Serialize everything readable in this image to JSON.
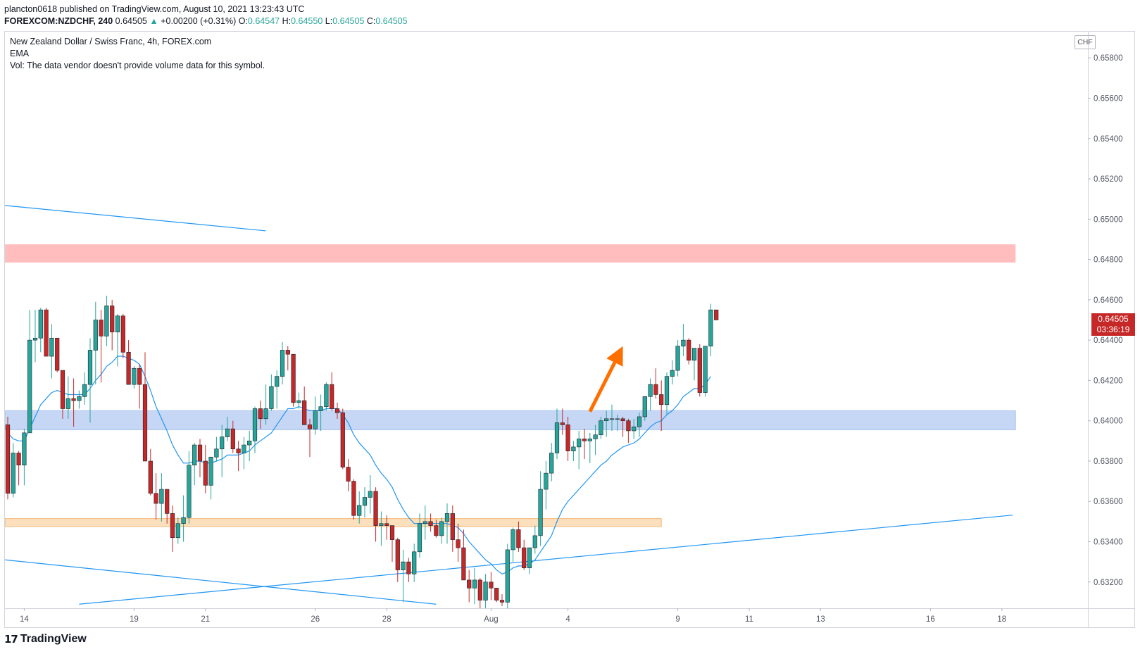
{
  "header": {
    "publisher_line": "plancton0618 published on TradingView.com, August 10, 2021 13:23:43 UTC",
    "symbol": "FOREXCOM:NZDCHF, 240",
    "last": "0.64505",
    "change": "+0.00200 (+0.31%)",
    "o_label": "O:",
    "o_value": "0.64547",
    "h_label": "H:",
    "h_value": "0.64550",
    "l_label": "L:",
    "l_value": "0.64505",
    "c_label": "C:",
    "c_value": "0.64505"
  },
  "legend": {
    "title": "New Zealand Dollar / Swiss Franc, 4h, FOREX.com",
    "ema": "EMA",
    "vol": "Vol: The data vendor doesn't provide volume data for this symbol."
  },
  "axis": {
    "currency": "CHF",
    "last_price": "0.64505",
    "countdown": "03:36:19"
  },
  "footer": {
    "brand": "TradingView"
  },
  "colors": {
    "up": "#26a69a",
    "down": "#c62828",
    "ema": "#2196f3",
    "resistance_zone": "#ffbdbd",
    "support_zone": "#c5d7f5",
    "demand_zone": "#fbd9b0",
    "arrow": "#ff6f00"
  },
  "chart_data": {
    "type": "candlestick",
    "ylim": [
      0.6307,
      0.6593
    ],
    "y_ticks": [
      "0.65800",
      "0.65600",
      "0.65400",
      "0.65200",
      "0.65000",
      "0.64800",
      "0.64600",
      "0.64400",
      "0.64200",
      "0.64000",
      "0.63800",
      "0.63600",
      "0.63400",
      "0.63200"
    ],
    "x_ticks": [
      {
        "label": "14",
        "bar": 3
      },
      {
        "label": "19",
        "bar": 23
      },
      {
        "label": "21",
        "bar": 36
      },
      {
        "label": "26",
        "bar": 56
      },
      {
        "label": "28",
        "bar": 69
      },
      {
        "label": "Aug",
        "bar": 88
      },
      {
        "label": "4",
        "bar": 102
      },
      {
        "label": "9",
        "bar": 122
      },
      {
        "label": "11",
        "bar": 135
      },
      {
        "label": "13",
        "bar": 148
      },
      {
        "label": "16",
        "bar": 168
      },
      {
        "label": "18",
        "bar": 181
      }
    ],
    "candles": [
      [
        0.6398,
        0.6402,
        0.6361,
        0.6364
      ],
      [
        0.6364,
        0.6389,
        0.6362,
        0.6384
      ],
      [
        0.6384,
        0.6385,
        0.6368,
        0.6378
      ],
      [
        0.6378,
        0.6396,
        0.6368,
        0.6394
      ],
      [
        0.6394,
        0.6455,
        0.6394,
        0.644
      ],
      [
        0.644,
        0.6455,
        0.6429,
        0.6441
      ],
      [
        0.6441,
        0.6456,
        0.6434,
        0.6455
      ],
      [
        0.6455,
        0.6456,
        0.6432,
        0.6432
      ],
      [
        0.6432,
        0.6448,
        0.6421,
        0.6441
      ],
      [
        0.6441,
        0.6441,
        0.6424,
        0.6425
      ],
      [
        0.6425,
        0.6425,
        0.6401,
        0.6406
      ],
      [
        0.6406,
        0.6422,
        0.6401,
        0.6411
      ],
      [
        0.6411,
        0.6421,
        0.6397,
        0.641
      ],
      [
        0.641,
        0.6415,
        0.6406,
        0.6412
      ],
      [
        0.6412,
        0.6424,
        0.6408,
        0.6418
      ],
      [
        0.6418,
        0.6441,
        0.6399,
        0.6435
      ],
      [
        0.6435,
        0.6459,
        0.6418,
        0.645
      ],
      [
        0.645,
        0.6455,
        0.6419,
        0.6442
      ],
      [
        0.6442,
        0.6462,
        0.6437,
        0.6457
      ],
      [
        0.6457,
        0.646,
        0.6435,
        0.6444
      ],
      [
        0.6444,
        0.6453,
        0.6427,
        0.6452
      ],
      [
        0.6452,
        0.6453,
        0.6431,
        0.6434
      ],
      [
        0.6434,
        0.644,
        0.6418,
        0.6418
      ],
      [
        0.6418,
        0.6427,
        0.6416,
        0.6426
      ],
      [
        0.6426,
        0.6428,
        0.6406,
        0.6418
      ],
      [
        0.6418,
        0.6434,
        0.638,
        0.638
      ],
      [
        0.638,
        0.6386,
        0.6363,
        0.6364
      ],
      [
        0.6364,
        0.6374,
        0.6351,
        0.6359
      ],
      [
        0.6359,
        0.6374,
        0.635,
        0.6366
      ],
      [
        0.6366,
        0.6366,
        0.6349,
        0.6354
      ],
      [
        0.6354,
        0.6358,
        0.6335,
        0.6342
      ],
      [
        0.6342,
        0.6352,
        0.6339,
        0.6349
      ],
      [
        0.6349,
        0.6363,
        0.634,
        0.6352
      ],
      [
        0.6352,
        0.6385,
        0.6349,
        0.6378
      ],
      [
        0.6378,
        0.6389,
        0.6368,
        0.6388
      ],
      [
        0.6388,
        0.6391,
        0.6372,
        0.638
      ],
      [
        0.638,
        0.6388,
        0.6364,
        0.6368
      ],
      [
        0.6368,
        0.6382,
        0.6361,
        0.6382
      ],
      [
        0.6382,
        0.6392,
        0.638,
        0.6386
      ],
      [
        0.6386,
        0.6398,
        0.6372,
        0.6392
      ],
      [
        0.6392,
        0.6402,
        0.639,
        0.6396
      ],
      [
        0.6396,
        0.64,
        0.6384,
        0.6386
      ],
      [
        0.6386,
        0.639,
        0.6375,
        0.6384
      ],
      [
        0.6384,
        0.6392,
        0.6376,
        0.6388
      ],
      [
        0.6388,
        0.6395,
        0.638,
        0.639
      ],
      [
        0.639,
        0.6407,
        0.6384,
        0.6406
      ],
      [
        0.6406,
        0.641,
        0.6396,
        0.6401
      ],
      [
        0.6401,
        0.6418,
        0.6398,
        0.6406
      ],
      [
        0.6406,
        0.6423,
        0.6405,
        0.6417
      ],
      [
        0.6417,
        0.6425,
        0.6406,
        0.6422
      ],
      [
        0.6422,
        0.6439,
        0.6418,
        0.6435
      ],
      [
        0.6435,
        0.6437,
        0.6425,
        0.6433
      ],
      [
        0.6433,
        0.6431,
        0.6407,
        0.6409
      ],
      [
        0.6409,
        0.6414,
        0.6406,
        0.641
      ],
      [
        0.641,
        0.6417,
        0.6399,
        0.6398
      ],
      [
        0.6398,
        0.6401,
        0.6382,
        0.6396
      ],
      [
        0.6396,
        0.6412,
        0.6393,
        0.6405
      ],
      [
        0.6405,
        0.6413,
        0.6395,
        0.6407
      ],
      [
        0.6407,
        0.6419,
        0.6405,
        0.6418
      ],
      [
        0.6418,
        0.6424,
        0.6405,
        0.6406
      ],
      [
        0.6406,
        0.6409,
        0.6401,
        0.6404
      ],
      [
        0.6404,
        0.6406,
        0.6376,
        0.6377
      ],
      [
        0.6377,
        0.6381,
        0.6365,
        0.637
      ],
      [
        0.637,
        0.6371,
        0.6351,
        0.6353
      ],
      [
        0.6353,
        0.6365,
        0.6349,
        0.6358
      ],
      [
        0.6358,
        0.6367,
        0.6352,
        0.6362
      ],
      [
        0.6362,
        0.6373,
        0.6354,
        0.6365
      ],
      [
        0.6365,
        0.6367,
        0.634,
        0.6348
      ],
      [
        0.6348,
        0.6355,
        0.6338,
        0.6349
      ],
      [
        0.6349,
        0.6353,
        0.6341,
        0.6348
      ],
      [
        0.6348,
        0.6348,
        0.633,
        0.6341
      ],
      [
        0.6341,
        0.6342,
        0.632,
        0.6326
      ],
      [
        0.6326,
        0.6336,
        0.631,
        0.633
      ],
      [
        0.633,
        0.6332,
        0.632,
        0.6324
      ],
      [
        0.6324,
        0.6339,
        0.632,
        0.6335
      ],
      [
        0.6335,
        0.6354,
        0.6332,
        0.6349
      ],
      [
        0.6349,
        0.6358,
        0.6341,
        0.635
      ],
      [
        0.635,
        0.6354,
        0.6345,
        0.6348
      ],
      [
        0.6348,
        0.6351,
        0.6342,
        0.6343
      ],
      [
        0.6343,
        0.6352,
        0.6339,
        0.635
      ],
      [
        0.635,
        0.6359,
        0.6339,
        0.6354
      ],
      [
        0.6354,
        0.6358,
        0.6335,
        0.6341
      ],
      [
        0.6341,
        0.6349,
        0.633,
        0.6337
      ],
      [
        0.6337,
        0.6346,
        0.6321,
        0.6321
      ],
      [
        0.6321,
        0.6326,
        0.631,
        0.6317
      ],
      [
        0.6317,
        0.6327,
        0.6309,
        0.6321
      ],
      [
        0.6321,
        0.6322,
        0.6306,
        0.6311
      ],
      [
        0.6311,
        0.6324,
        0.6307,
        0.632
      ],
      [
        0.632,
        0.6325,
        0.6311,
        0.6317
      ],
      [
        0.6317,
        0.6317,
        0.631,
        0.6311
      ],
      [
        0.6311,
        0.6314,
        0.6308,
        0.631
      ],
      [
        0.631,
        0.6339,
        0.6306,
        0.6336
      ],
      [
        0.6336,
        0.6347,
        0.633,
        0.6346
      ],
      [
        0.6346,
        0.635,
        0.6335,
        0.6337
      ],
      [
        0.6337,
        0.6341,
        0.6326,
        0.6327
      ],
      [
        0.6327,
        0.6337,
        0.6324,
        0.6337
      ],
      [
        0.6337,
        0.6348,
        0.6334,
        0.6343
      ],
      [
        0.6343,
        0.6375,
        0.6338,
        0.6366
      ],
      [
        0.6366,
        0.638,
        0.6356,
        0.6374
      ],
      [
        0.6374,
        0.6389,
        0.637,
        0.6384
      ],
      [
        0.6384,
        0.6406,
        0.6381,
        0.6399
      ],
      [
        0.6399,
        0.6406,
        0.6393,
        0.6398
      ],
      [
        0.6398,
        0.6402,
        0.638,
        0.6385
      ],
      [
        0.6385,
        0.639,
        0.638,
        0.6387
      ],
      [
        0.6387,
        0.6395,
        0.6376,
        0.6391
      ],
      [
        0.6391,
        0.6396,
        0.6381,
        0.639
      ],
      [
        0.639,
        0.6394,
        0.6379,
        0.6391
      ],
      [
        0.6391,
        0.6398,
        0.6383,
        0.6393
      ],
      [
        0.6393,
        0.6402,
        0.6391,
        0.64
      ],
      [
        0.64,
        0.6405,
        0.6392,
        0.6401
      ],
      [
        0.6401,
        0.6408,
        0.6395,
        0.6401
      ],
      [
        0.6401,
        0.6403,
        0.6395,
        0.6401
      ],
      [
        0.6401,
        0.6402,
        0.6392,
        0.64
      ],
      [
        0.64,
        0.6401,
        0.6389,
        0.6395
      ],
      [
        0.6395,
        0.6401,
        0.6391,
        0.6397
      ],
      [
        0.6397,
        0.6404,
        0.6392,
        0.6402
      ],
      [
        0.6402,
        0.6412,
        0.64,
        0.6412
      ],
      [
        0.6412,
        0.6421,
        0.6405,
        0.6418
      ],
      [
        0.6418,
        0.6426,
        0.6411,
        0.6413
      ],
      [
        0.6413,
        0.642,
        0.6395,
        0.6408
      ],
      [
        0.6408,
        0.6424,
        0.6403,
        0.6422
      ],
      [
        0.6422,
        0.643,
        0.6418,
        0.6425
      ],
      [
        0.6425,
        0.644,
        0.6422,
        0.6437
      ],
      [
        0.6437,
        0.6448,
        0.6432,
        0.644
      ],
      [
        0.644,
        0.6441,
        0.6428,
        0.643
      ],
      [
        0.643,
        0.6434,
        0.642,
        0.6436
      ],
      [
        0.6436,
        0.6438,
        0.6412,
        0.6414
      ],
      [
        0.6414,
        0.6437,
        0.6412,
        0.6437
      ],
      [
        0.6437,
        0.6458,
        0.6432,
        0.6455
      ],
      [
        0.6455,
        0.6455,
        0.645,
        0.645
      ]
    ],
    "ema": [
      0.6394,
      0.6391,
      0.639,
      0.639,
      0.6396,
      0.6402,
      0.6408,
      0.6411,
      0.6414,
      0.6415,
      0.6414,
      0.6413,
      0.6413,
      0.6413,
      0.6413,
      0.6416,
      0.642,
      0.6423,
      0.6427,
      0.6429,
      0.6432,
      0.6432,
      0.6431,
      0.643,
      0.6428,
      0.6422,
      0.6415,
      0.6407,
      0.6401,
      0.6395,
      0.6388,
      0.6383,
      0.6379,
      0.6379,
      0.638,
      0.638,
      0.6379,
      0.6379,
      0.638,
      0.6381,
      0.6383,
      0.6383,
      0.6383,
      0.6384,
      0.6385,
      0.6388,
      0.639,
      0.6392,
      0.6394,
      0.6398,
      0.6402,
      0.6406,
      0.6406,
      0.6407,
      0.6406,
      0.6405,
      0.6405,
      0.6405,
      0.6406,
      0.6406,
      0.6406,
      0.6403,
      0.6399,
      0.6393,
      0.6389,
      0.6386,
      0.6383,
      0.6378,
      0.6374,
      0.6371,
      0.6367,
      0.6361,
      0.6356,
      0.6352,
      0.6349,
      0.6349,
      0.6349,
      0.6349,
      0.6349,
      0.6349,
      0.6349,
      0.6348,
      0.6347,
      0.6344,
      0.634,
      0.6337,
      0.6334,
      0.6331,
      0.6329,
      0.6326,
      0.6324,
      0.6325,
      0.6327,
      0.6328,
      0.6328,
      0.6329,
      0.6331,
      0.6335,
      0.6339,
      0.6343,
      0.635,
      0.6356,
      0.636,
      0.6363,
      0.6366,
      0.6369,
      0.6372,
      0.6375,
      0.6378,
      0.638,
      0.6383,
      0.6385,
      0.6387,
      0.6388,
      0.6389,
      0.6391,
      0.6394,
      0.6397,
      0.6399,
      0.64,
      0.6403,
      0.6405,
      0.6408,
      0.6412,
      0.6414,
      0.6416,
      0.6416,
      0.6418,
      0.6422
    ],
    "zones": [
      {
        "name": "resistance-zone",
        "y_top": 0.64875,
        "y_bottom": 0.64785,
        "x_from": 0,
        "x_to": 183,
        "color": "resistance_zone"
      },
      {
        "name": "support-zone",
        "y_top": 0.6405,
        "y_bottom": 0.63955,
        "x_from": 0,
        "x_to": 183,
        "color": "support_zone"
      },
      {
        "name": "demand-zone",
        "y_top": 0.63515,
        "y_bottom": 0.63475,
        "x_from": 0,
        "x_to": 118.5,
        "color": "demand_zone"
      }
    ],
    "trendlines": [
      {
        "name": "trendline-upper",
        "x1": -0.5,
        "y1": 0.65068,
        "x2": 47,
        "y2": 0.64942
      },
      {
        "name": "trendline-rising",
        "x1": 13,
        "y1": 0.6309,
        "x2": 183,
        "y2": 0.63532
      },
      {
        "name": "trendline-falling",
        "x1": -0.5,
        "y1": 0.6331,
        "x2": 78,
        "y2": 0.6309
      }
    ],
    "arrow": {
      "x1": 106,
      "y1": 0.64045,
      "x2": 112,
      "y2": 0.6437
    }
  }
}
